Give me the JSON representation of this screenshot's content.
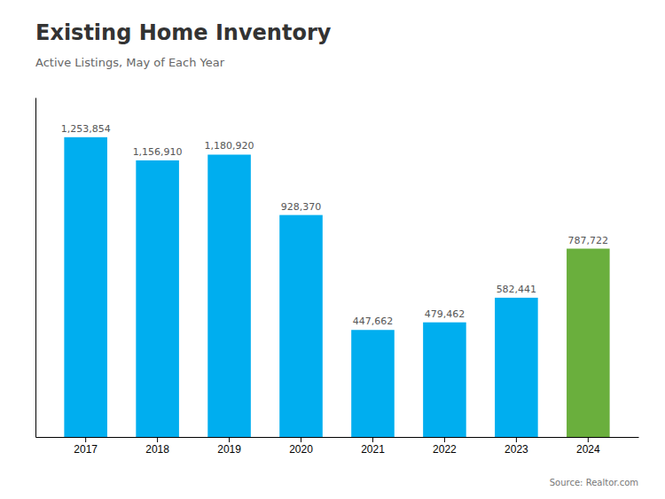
{
  "chart_data": {
    "type": "bar",
    "title": "Existing Home Inventory",
    "subtitle": "Active Listings, May of Each Year",
    "annotations": [
      "Source: Realtor.com"
    ],
    "categories": [
      "2017",
      "2018",
      "2019",
      "2020",
      "2021",
      "2022",
      "2023",
      "2024"
    ],
    "values": [
      1253854,
      1156910,
      1180920,
      928370,
      447662,
      479462,
      582441,
      787722
    ],
    "value_labels": [
      "1,253,854",
      "1,156,910",
      "1,180,920",
      "928,370",
      "447,662",
      "479,462",
      "582,441",
      "787,722"
    ],
    "colors": [
      "#00AEEF",
      "#00AEEF",
      "#00AEEF",
      "#00AEEF",
      "#00AEEF",
      "#00AEEF",
      "#00AEEF",
      "#6AAF3D"
    ],
    "ylim": [
      0,
      1420000
    ],
    "data_labels": true,
    "tick_labels": "x",
    "grid": false
  }
}
